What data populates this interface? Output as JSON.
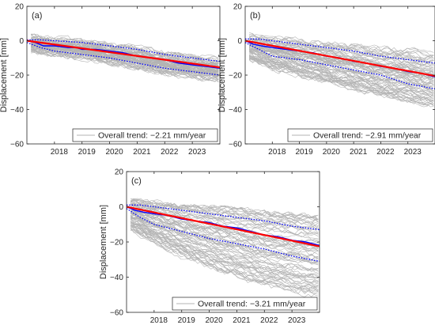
{
  "chart_data": [
    {
      "type": "line",
      "panel_label": "(a)",
      "ylabel": "Displacement [mm]",
      "xlim": [
        2017.0,
        2024.0
      ],
      "ylim": [
        -60,
        20
      ],
      "x_ticks": [
        2018,
        2019,
        2020,
        2021,
        2022,
        2023
      ],
      "y_ticks": [
        -60,
        -40,
        -20,
        0,
        20
      ],
      "legend": {
        "location": "bottom-right",
        "text": "Overall trend: −2.21 mm/year"
      },
      "rate_mm_per_year": -2.21,
      "series": [
        {
          "name": "Overall trend: −2.21 mm/year",
          "role": "individual time series",
          "color": "#b3b3b3",
          "band": {
            "x": [
              2017.0,
              2018.0,
              2019.0,
              2020.0,
              2021.0,
              2022.0,
              2023.0,
              2024.0
            ],
            "upper": [
              3,
              1,
              0,
              -2,
              -4,
              -7,
              -9,
              -11
            ],
            "lower": [
              -6,
              -8,
              -10,
              -13,
              -16,
              -19,
              -21,
              -23
            ]
          }
        },
        {
          "role": "trend line",
          "color": "#ff0000",
          "x": [
            2017.0,
            2024.0
          ],
          "y": [
            0,
            -15.5
          ]
        },
        {
          "role": "mean",
          "color": "#0000ff",
          "x": [
            2017.0,
            2017.3,
            2017.6,
            2018.0,
            2018.5,
            2018.8,
            2019.0,
            2019.5,
            2020.0,
            2020.5,
            2021.0,
            2021.5,
            2022.0,
            2022.5,
            2023.0,
            2023.5,
            2024.0
          ],
          "y": [
            0,
            -1,
            -3,
            -3,
            -4,
            -4,
            -5,
            -5,
            -6,
            -7,
            -9,
            -10,
            -11,
            -13,
            -14,
            -15,
            -16
          ]
        },
        {
          "role": "upper bound",
          "color": "#0000ff",
          "x": [
            2017.0,
            2017.5,
            2018.0,
            2019.0,
            2020.0,
            2021.0,
            2022.0,
            2023.0,
            2024.0
          ],
          "y": [
            0.5,
            0.5,
            0,
            -1,
            -3,
            -5,
            -8,
            -10,
            -12
          ]
        },
        {
          "role": "lower bound",
          "color": "#0000ff",
          "x": [
            2017.0,
            2017.5,
            2018.0,
            2019.0,
            2020.0,
            2021.0,
            2022.0,
            2023.0,
            2024.0
          ],
          "y": [
            -1,
            -4,
            -6,
            -8,
            -10,
            -13,
            -16,
            -18,
            -20
          ]
        }
      ]
    },
    {
      "type": "line",
      "panel_label": "(b)",
      "ylabel": "Displacement [mm]",
      "xlim": [
        2017.0,
        2024.0
      ],
      "ylim": [
        -60,
        20
      ],
      "x_ticks": [
        2018,
        2019,
        2020,
        2021,
        2022,
        2023
      ],
      "y_ticks": [
        -60,
        -40,
        -20,
        0,
        20
      ],
      "legend": {
        "location": "bottom-right",
        "text": "Overall trend: −2.91 mm/year"
      },
      "rate_mm_per_year": -2.91,
      "series": [
        {
          "name": "Overall trend: −2.91 mm/year",
          "role": "individual time series",
          "color": "#b3b3b3",
          "band": {
            "x": [
              2017.0,
              2018.0,
              2019.0,
              2020.0,
              2021.0,
              2022.0,
              2023.0,
              2024.0
            ],
            "upper": [
              4,
              2,
              1,
              -1,
              -2,
              -4,
              -5,
              -7
            ],
            "lower": [
              -10,
              -16,
              -20,
              -24,
              -28,
              -32,
              -35,
              -38
            ]
          }
        },
        {
          "role": "trend line",
          "color": "#ff0000",
          "x": [
            2017.0,
            2024.0
          ],
          "y": [
            0,
            -20.5
          ]
        },
        {
          "role": "mean",
          "color": "#0000ff",
          "x": [
            2017.0,
            2017.3,
            2017.6,
            2018.0,
            2018.5,
            2019.0,
            2019.5,
            2020.0,
            2020.5,
            2021.0,
            2021.5,
            2022.0,
            2022.5,
            2023.0,
            2023.5,
            2024.0
          ],
          "y": [
            0,
            -2,
            -3,
            -4,
            -5,
            -6,
            -7,
            -9,
            -10,
            -12,
            -13,
            -15,
            -16,
            -18,
            -19,
            -21
          ]
        },
        {
          "role": "upper bound",
          "color": "#0000ff",
          "x": [
            2017.0,
            2017.5,
            2018.0,
            2019.0,
            2020.0,
            2021.0,
            2022.0,
            2023.0,
            2024.0
          ],
          "y": [
            1,
            1,
            0,
            -2,
            -4,
            -6,
            -9,
            -11,
            -13
          ]
        },
        {
          "role": "lower bound",
          "color": "#0000ff",
          "x": [
            2017.0,
            2017.5,
            2018.0,
            2019.0,
            2020.0,
            2021.0,
            2022.0,
            2023.0,
            2024.0
          ],
          "y": [
            -1,
            -5,
            -9,
            -11,
            -14,
            -17,
            -20,
            -25,
            -28
          ]
        }
      ]
    },
    {
      "type": "line",
      "panel_label": "(c)",
      "ylabel": "Displacement [mm]",
      "xlim": [
        2017.0,
        2024.0
      ],
      "ylim": [
        -60,
        20
      ],
      "x_ticks": [
        2018,
        2019,
        2020,
        2021,
        2022,
        2023
      ],
      "y_ticks": [
        -60,
        -40,
        -20,
        0,
        20
      ],
      "legend": {
        "location": "bottom-right",
        "text": "Overall trend: −3.21 mm/year"
      },
      "rate_mm_per_year": -3.21,
      "series": [
        {
          "name": "Overall trend: −3.21 mm/year",
          "role": "individual time series",
          "color": "#b3b3b3",
          "band": {
            "x": [
              2017.0,
              2018.0,
              2019.0,
              2020.0,
              2021.0,
              2022.0,
              2023.0,
              2024.0
            ],
            "upper": [
              4,
              2,
              1,
              0,
              -1,
              -3,
              -4,
              -6
            ],
            "lower": [
              -12,
              -20,
              -28,
              -34,
              -40,
              -45,
              -48,
              -50
            ]
          }
        },
        {
          "role": "trend line",
          "color": "#ff0000",
          "x": [
            2017.0,
            2024.0
          ],
          "y": [
            0,
            -22.5
          ]
        },
        {
          "role": "mean",
          "color": "#0000ff",
          "x": [
            2017.0,
            2017.3,
            2017.6,
            2018.0,
            2018.5,
            2019.0,
            2019.5,
            2020.0,
            2020.5,
            2021.0,
            2021.5,
            2022.0,
            2022.5,
            2023.0,
            2023.5,
            2024.0
          ],
          "y": [
            0,
            -2,
            -3,
            -4,
            -5,
            -7,
            -8,
            -9,
            -11,
            -12,
            -14,
            -16,
            -17,
            -19,
            -20,
            -22
          ]
        },
        {
          "role": "upper bound",
          "color": "#0000ff",
          "x": [
            2017.0,
            2017.5,
            2018.0,
            2019.0,
            2020.0,
            2021.0,
            2022.0,
            2023.0,
            2024.0
          ],
          "y": [
            1,
            1,
            0,
            -2,
            -4,
            -6,
            -8,
            -11,
            -13
          ]
        },
        {
          "role": "lower bound",
          "color": "#0000ff",
          "x": [
            2017.0,
            2017.5,
            2018.0,
            2019.0,
            2020.0,
            2021.0,
            2022.0,
            2023.0,
            2024.0
          ],
          "y": [
            -1,
            -6,
            -10,
            -14,
            -18,
            -21,
            -24,
            -28,
            -31
          ]
        }
      ]
    }
  ]
}
